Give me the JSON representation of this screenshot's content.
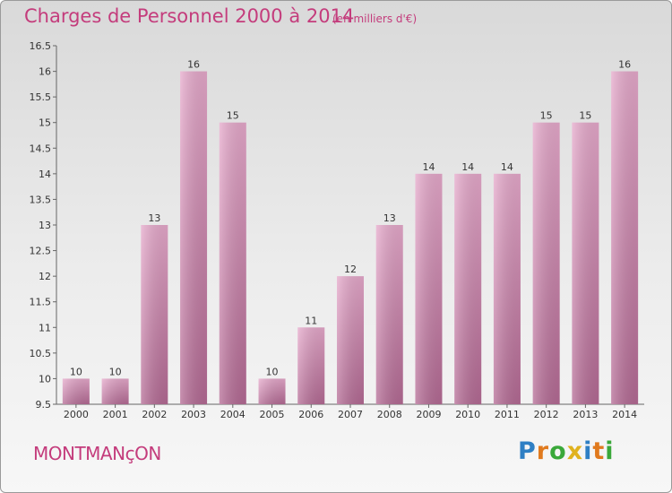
{
  "chart_data": {
    "type": "bar",
    "title": "Charges de Personnel 2000 à 2014",
    "subtitle": "(en milliers d'€)",
    "categories": [
      "2000",
      "2001",
      "2002",
      "2003",
      "2004",
      "2005",
      "2006",
      "2007",
      "2008",
      "2009",
      "2010",
      "2011",
      "2012",
      "2013",
      "2014"
    ],
    "values": [
      10,
      10,
      13,
      16,
      15,
      10,
      11,
      12,
      13,
      14,
      14,
      14,
      15,
      15,
      16
    ],
    "ylim": [
      9.5,
      16.5
    ],
    "yticks": [
      "9.5",
      "10",
      "10.5",
      "11",
      "11.5",
      "12",
      "12.5",
      "13",
      "13.5",
      "14",
      "14.5",
      "15",
      "15.5",
      "16",
      "16.5"
    ],
    "grid": false,
    "bar_color": "#d98fb7"
  },
  "footer": {
    "city": "MONTMANçON"
  },
  "logo": {
    "letters": [
      {
        "ch": "P",
        "color": "#2e7fc4"
      },
      {
        "ch": "r",
        "color": "#e07a1e"
      },
      {
        "ch": "o",
        "color": "#3aa83a"
      },
      {
        "ch": "x",
        "color": "#e0b21e"
      },
      {
        "ch": "i",
        "color": "#2e7fc4"
      },
      {
        "ch": "t",
        "color": "#e07a1e"
      },
      {
        "ch": "i",
        "color": "#3aa83a"
      }
    ]
  }
}
